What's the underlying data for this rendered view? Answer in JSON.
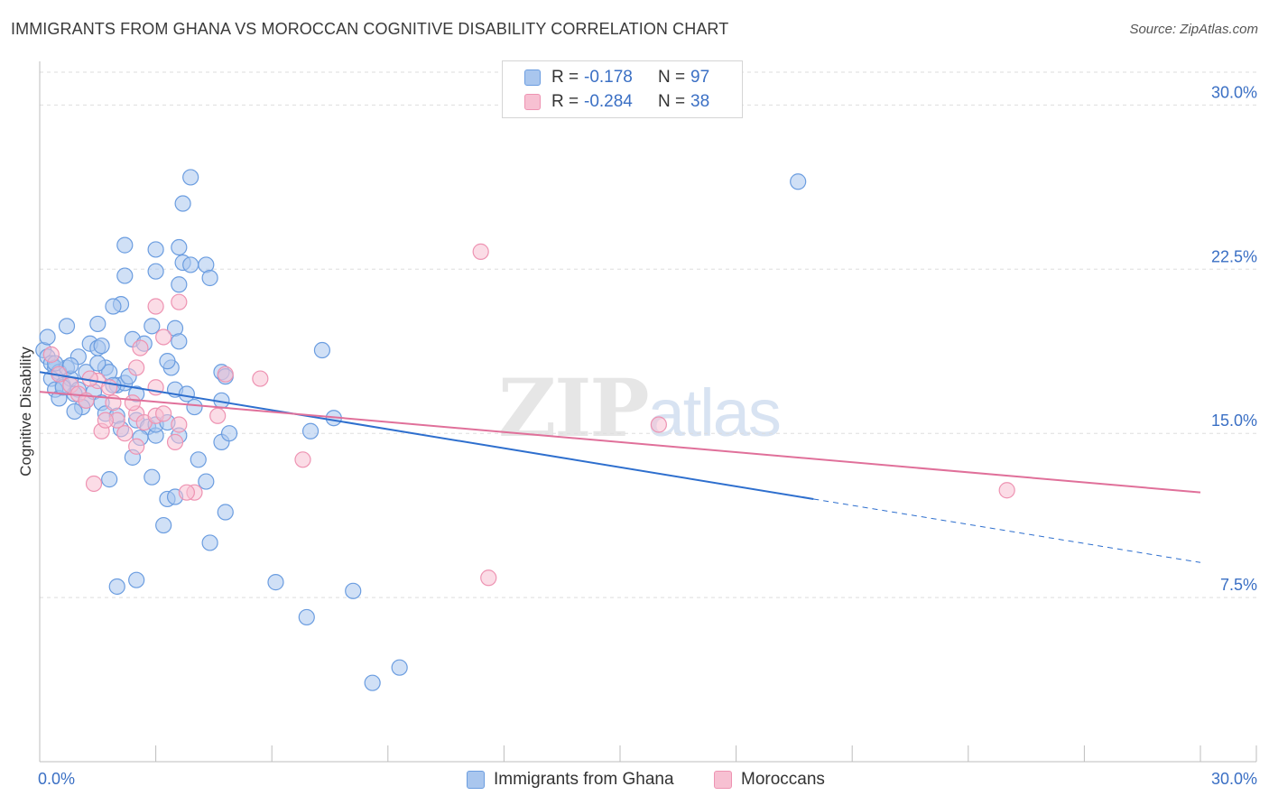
{
  "title": "IMMIGRANTS FROM GHANA VS MOROCCAN COGNITIVE DISABILITY CORRELATION CHART",
  "source": "Source: ZipAtlas.com",
  "watermark": {
    "zip": "ZIP",
    "atlas": "atlas"
  },
  "legend": {
    "rows": [
      {
        "r_label": "R =",
        "r_value": "-0.178",
        "n_label": "N =",
        "n_value": "97"
      },
      {
        "r_label": "R =",
        "r_value": "-0.284",
        "n_label": "N =",
        "n_value": "38"
      }
    ]
  },
  "bottom_legend": [
    "Immigrants from Ghana",
    "Moroccans"
  ],
  "colors": {
    "blue_fill": "#a9c6ee",
    "blue_stroke": "#6b9de0",
    "blue_line": "#2e6fce",
    "pink_fill": "#f7c0d2",
    "pink_stroke": "#ee93b2",
    "pink_line": "#e0709a",
    "tick_text": "#3a6fc4",
    "grid": "#dedede"
  },
  "chart_data": {
    "type": "scatter",
    "title": "IMMIGRANTS FROM GHANA VS MOROCCAN COGNITIVE DISABILITY CORRELATION CHART",
    "xlabel": "",
    "ylabel": "Cognitive Disability",
    "xlim": [
      0,
      30
    ],
    "ylim": [
      0,
      31.5
    ],
    "x_tick_labels": [
      "0.0%",
      "30.0%"
    ],
    "y_ticks": [
      7.5,
      15.0,
      22.5,
      30.0
    ],
    "y_tick_labels": [
      "7.5%",
      "15.0%",
      "22.5%",
      "30.0%"
    ],
    "series": [
      {
        "name": "Immigrants from Ghana",
        "r": -0.178,
        "n": 97,
        "trend": {
          "x0": 0,
          "y0": 17.8,
          "x1": 20.0,
          "y1": 12.0,
          "dash_to_x": 30,
          "dash_to_y": 9.1
        },
        "points": [
          [
            0.1,
            18.8
          ],
          [
            0.2,
            18.5
          ],
          [
            0.3,
            18.2
          ],
          [
            0.4,
            18.0
          ],
          [
            0.5,
            17.8
          ],
          [
            0.3,
            17.5
          ],
          [
            0.6,
            17.2
          ],
          [
            0.4,
            17.0
          ],
          [
            0.7,
            18.0
          ],
          [
            0.8,
            17.5
          ],
          [
            1.0,
            17.0
          ],
          [
            0.9,
            16.8
          ],
          [
            1.2,
            16.5
          ],
          [
            1.1,
            16.2
          ],
          [
            0.5,
            16.6
          ],
          [
            0.2,
            19.4
          ],
          [
            0.7,
            19.9
          ],
          [
            1.0,
            18.5
          ],
          [
            1.3,
            19.1
          ],
          [
            1.5,
            18.9
          ],
          [
            1.6,
            19.0
          ],
          [
            1.7,
            18.0
          ],
          [
            1.8,
            17.8
          ],
          [
            2.0,
            17.2
          ],
          [
            2.2,
            17.3
          ],
          [
            1.4,
            16.9
          ],
          [
            1.6,
            16.4
          ],
          [
            1.7,
            15.9
          ],
          [
            2.0,
            15.8
          ],
          [
            2.1,
            15.2
          ],
          [
            2.5,
            15.6
          ],
          [
            2.8,
            15.3
          ],
          [
            3.0,
            14.9
          ],
          [
            2.6,
            14.8
          ],
          [
            2.4,
            13.9
          ],
          [
            1.8,
            12.9
          ],
          [
            2.9,
            13.0
          ],
          [
            3.3,
            12.0
          ],
          [
            3.5,
            12.1
          ],
          [
            3.2,
            10.8
          ],
          [
            4.3,
            12.8
          ],
          [
            4.1,
            13.8
          ],
          [
            4.8,
            11.4
          ],
          [
            4.4,
            10.0
          ],
          [
            2.0,
            8.0
          ],
          [
            2.5,
            8.3
          ],
          [
            6.1,
            8.2
          ],
          [
            8.1,
            7.8
          ],
          [
            6.9,
            6.6
          ],
          [
            9.3,
            4.3
          ],
          [
            8.6,
            3.6
          ],
          [
            1.5,
            20.0
          ],
          [
            2.1,
            20.9
          ],
          [
            1.9,
            20.8
          ],
          [
            2.2,
            22.2
          ],
          [
            2.2,
            23.6
          ],
          [
            3.0,
            23.4
          ],
          [
            3.0,
            22.4
          ],
          [
            3.6,
            23.5
          ],
          [
            3.6,
            21.8
          ],
          [
            3.7,
            22.8
          ],
          [
            3.9,
            22.7
          ],
          [
            4.3,
            22.7
          ],
          [
            4.4,
            22.1
          ],
          [
            3.7,
            25.5
          ],
          [
            3.9,
            26.7
          ],
          [
            2.9,
            19.9
          ],
          [
            3.5,
            19.8
          ],
          [
            3.6,
            19.2
          ],
          [
            3.4,
            18.0
          ],
          [
            3.3,
            18.3
          ],
          [
            2.4,
            19.3
          ],
          [
            3.5,
            17.0
          ],
          [
            3.8,
            16.8
          ],
          [
            4.7,
            17.8
          ],
          [
            4.8,
            17.6
          ],
          [
            4.7,
            16.5
          ],
          [
            3.6,
            14.9
          ],
          [
            4.7,
            14.6
          ],
          [
            4.9,
            15.0
          ],
          [
            7.3,
            18.8
          ],
          [
            7.6,
            15.7
          ],
          [
            7.0,
            15.1
          ],
          [
            3.0,
            15.4
          ],
          [
            3.3,
            15.5
          ],
          [
            19.6,
            26.5
          ],
          [
            0.9,
            16.0
          ],
          [
            1.2,
            17.8
          ],
          [
            0.4,
            18.2
          ],
          [
            0.6,
            17.1
          ],
          [
            1.5,
            18.2
          ],
          [
            2.5,
            16.8
          ],
          [
            2.7,
            19.1
          ],
          [
            4.0,
            16.2
          ],
          [
            1.9,
            17.2
          ],
          [
            2.3,
            17.6
          ],
          [
            0.8,
            18.1
          ]
        ]
      },
      {
        "name": "Moroccans",
        "r": -0.284,
        "n": 38,
        "trend": {
          "x0": 0,
          "y0": 16.9,
          "x1": 30,
          "y1": 12.3
        },
        "points": [
          [
            0.3,
            18.6
          ],
          [
            0.5,
            17.7
          ],
          [
            0.8,
            17.2
          ],
          [
            1.0,
            16.8
          ],
          [
            1.2,
            16.5
          ],
          [
            1.5,
            17.4
          ],
          [
            1.8,
            17.1
          ],
          [
            1.9,
            16.4
          ],
          [
            2.0,
            15.6
          ],
          [
            2.2,
            15.0
          ],
          [
            2.5,
            15.9
          ],
          [
            2.7,
            15.5
          ],
          [
            2.5,
            14.4
          ],
          [
            3.0,
            15.8
          ],
          [
            3.2,
            15.9
          ],
          [
            3.5,
            14.6
          ],
          [
            3.6,
            15.4
          ],
          [
            4.6,
            15.8
          ],
          [
            4.8,
            17.7
          ],
          [
            5.7,
            17.5
          ],
          [
            3.0,
            20.8
          ],
          [
            3.6,
            21.0
          ],
          [
            3.2,
            19.4
          ],
          [
            2.5,
            18.0
          ],
          [
            2.6,
            18.9
          ],
          [
            3.0,
            17.1
          ],
          [
            1.4,
            12.7
          ],
          [
            1.3,
            17.5
          ],
          [
            4.0,
            12.3
          ],
          [
            3.8,
            12.3
          ],
          [
            1.6,
            15.1
          ],
          [
            2.4,
            16.4
          ],
          [
            6.8,
            13.8
          ],
          [
            11.4,
            23.3
          ],
          [
            11.6,
            8.4
          ],
          [
            16.0,
            15.4
          ],
          [
            25.0,
            12.4
          ],
          [
            1.7,
            15.6
          ]
        ]
      }
    ]
  }
}
